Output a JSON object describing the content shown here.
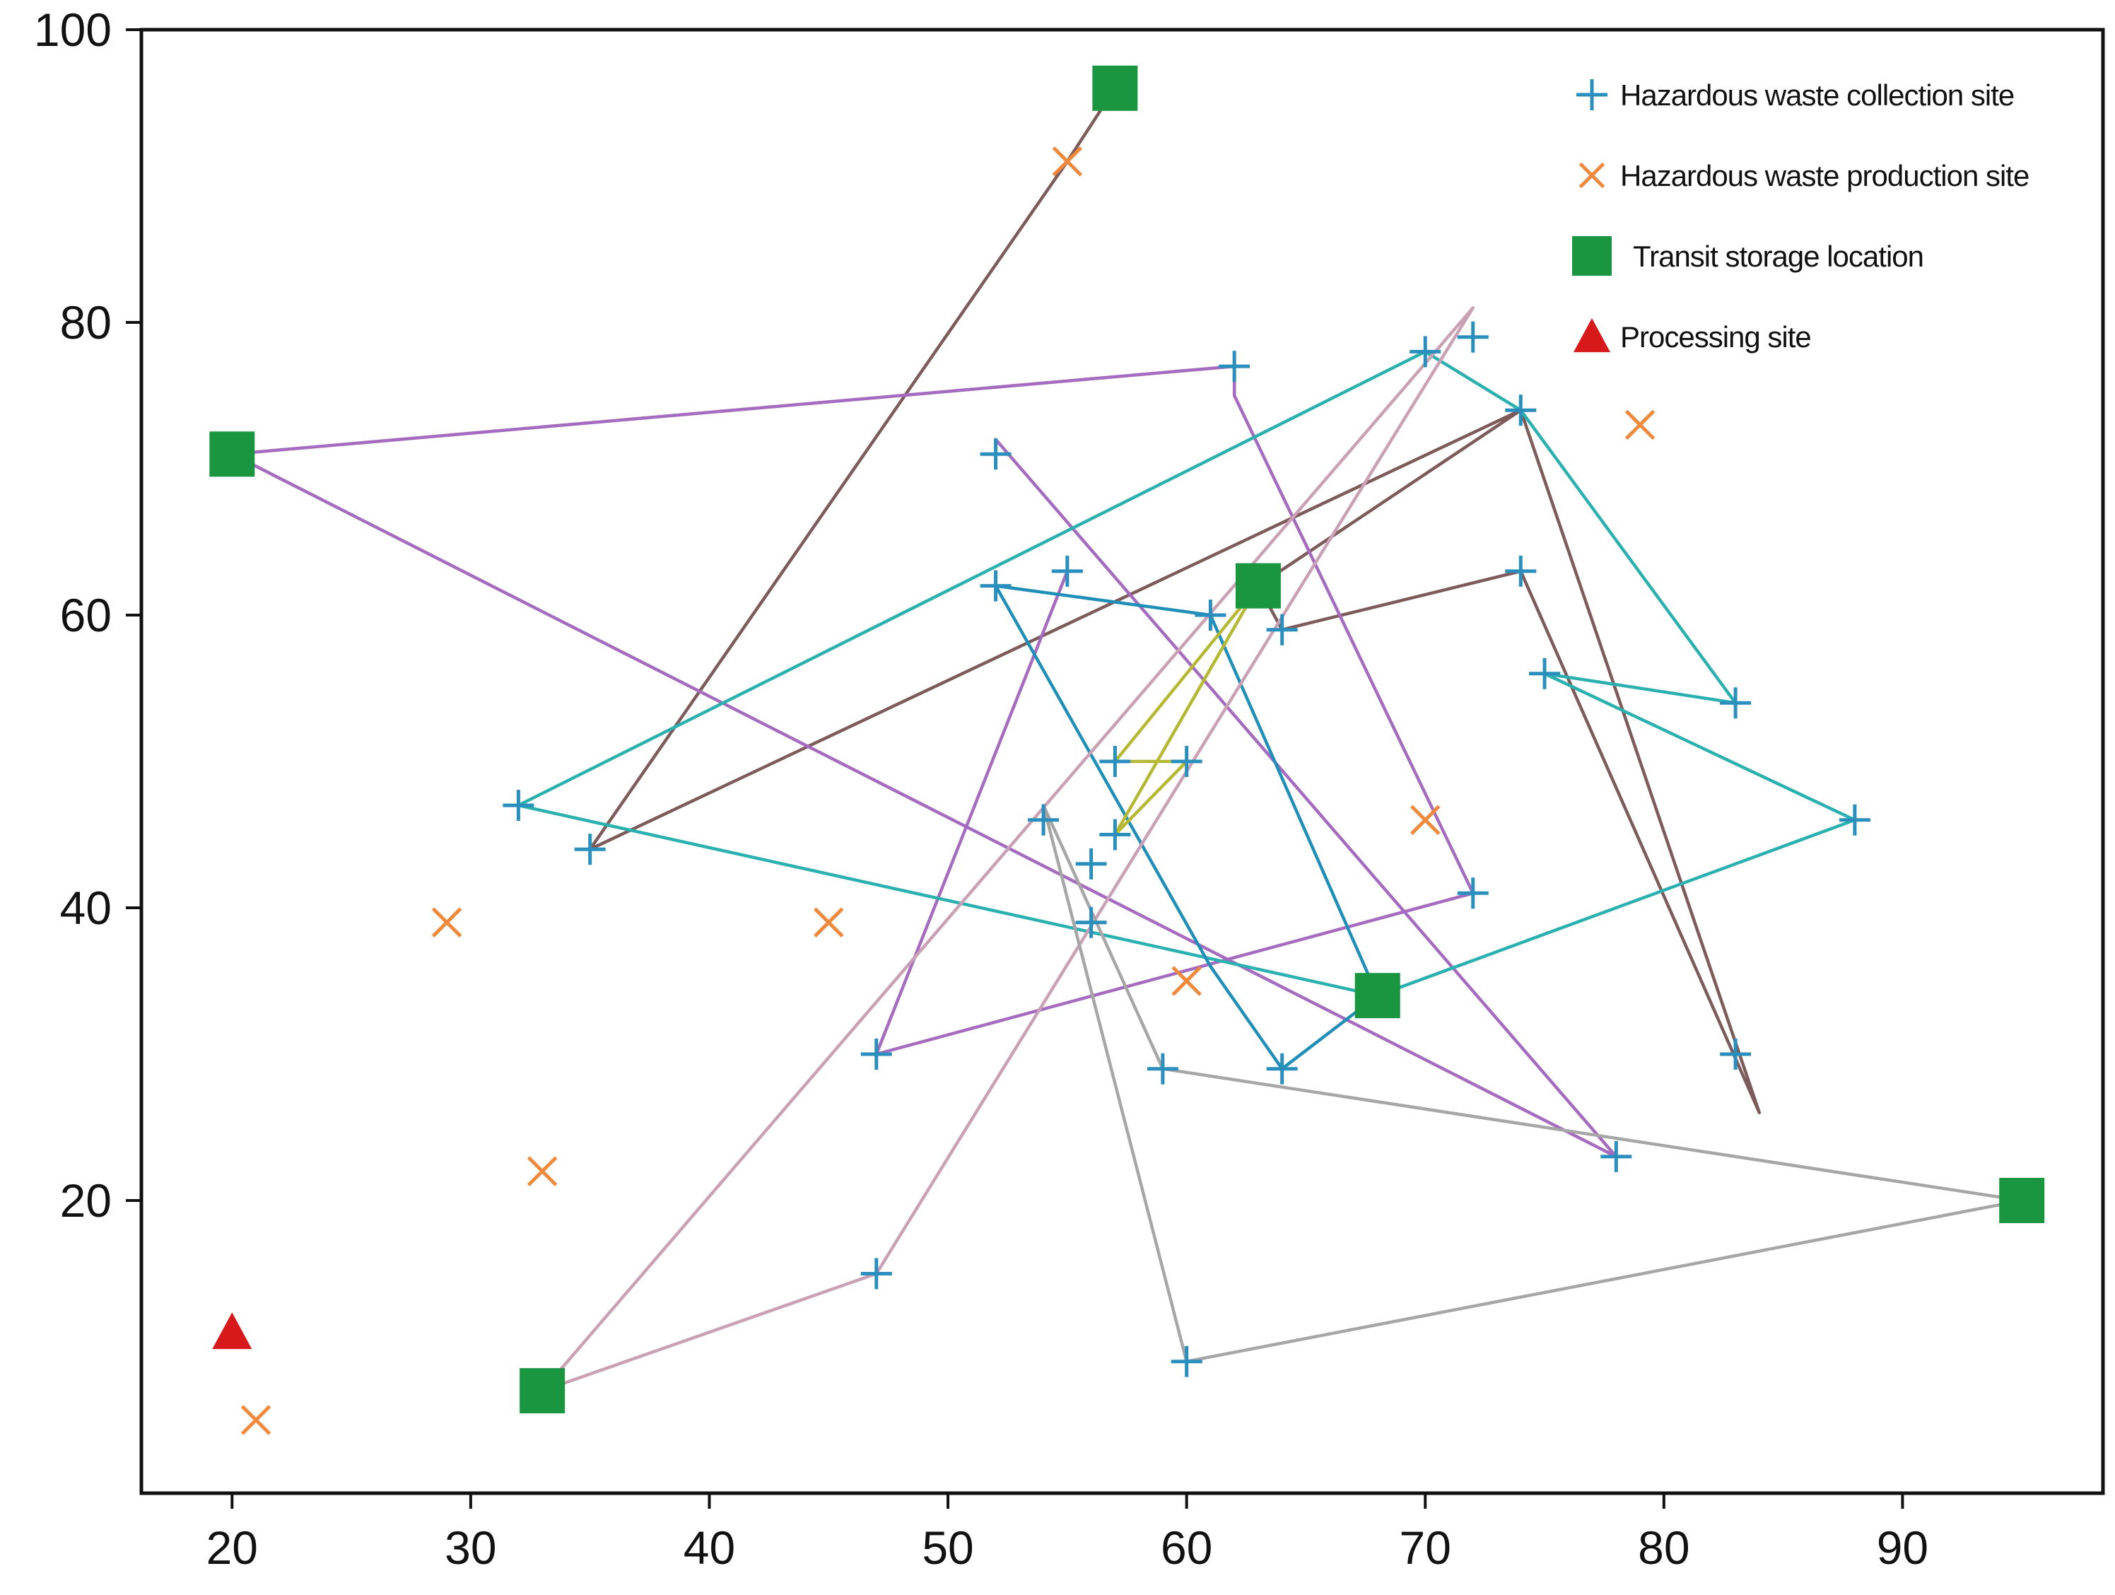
{
  "chart_data": {
    "type": "scatter",
    "title": "",
    "xlabel": "",
    "ylabel": "",
    "xlim": [
      16.2,
      98.4
    ],
    "ylim": [
      0,
      100
    ],
    "xticks": [
      20,
      30,
      40,
      50,
      60,
      70,
      80,
      90
    ],
    "yticks": [
      20,
      40,
      60,
      80,
      100
    ],
    "grid": false,
    "legend_position": "top-right",
    "legend": [
      {
        "key": "collection",
        "label": "Hazardous waste collection site"
      },
      {
        "key": "production",
        "label": "Hazardous waste production site"
      },
      {
        "key": "storage",
        "label": "Transit storage location"
      },
      {
        "key": "processing",
        "label": "Processing site"
      }
    ],
    "colors": {
      "collection": "#2a8fbd",
      "production": "#ef8a3c",
      "storage": "#1a9641",
      "processing": "#d7191c",
      "axis": "#111111"
    },
    "series": [
      {
        "key": "collection",
        "name": "Hazardous waste collection site",
        "marker": "plus",
        "points": [
          [
            62,
            77
          ],
          [
            52,
            71
          ],
          [
            74,
            74
          ],
          [
            70,
            78
          ],
          [
            72,
            79
          ],
          [
            52,
            62
          ],
          [
            55,
            63
          ],
          [
            61,
            60
          ],
          [
            64,
            59
          ],
          [
            74,
            63
          ],
          [
            75,
            56
          ],
          [
            83,
            54
          ],
          [
            88,
            46
          ],
          [
            57,
            50
          ],
          [
            60,
            50
          ],
          [
            54,
            46
          ],
          [
            56,
            43
          ],
          [
            57,
            45
          ],
          [
            56,
            39
          ],
          [
            32,
            47
          ],
          [
            35,
            44
          ],
          [
            72,
            41
          ],
          [
            47,
            30
          ],
          [
            59,
            29
          ],
          [
            64,
            29
          ],
          [
            83,
            30
          ],
          [
            78,
            23
          ],
          [
            47,
            15
          ],
          [
            60,
            9
          ]
        ]
      },
      {
        "key": "production",
        "name": "Hazardous waste production site",
        "marker": "x",
        "points": [
          [
            55,
            91
          ],
          [
            79,
            73
          ],
          [
            70,
            46
          ],
          [
            29,
            39
          ],
          [
            45,
            39
          ],
          [
            60,
            35
          ],
          [
            33,
            22
          ],
          [
            21,
            5
          ]
        ]
      },
      {
        "key": "storage",
        "name": "Transit storage location",
        "marker": "square",
        "points": [
          [
            57,
            96
          ],
          [
            20,
            71
          ],
          [
            63,
            62
          ],
          [
            68,
            34
          ],
          [
            95,
            20
          ],
          [
            33,
            7
          ]
        ]
      },
      {
        "key": "processing",
        "name": "Processing site",
        "marker": "triangle",
        "points": [
          [
            20,
            11
          ]
        ]
      }
    ],
    "routes": [
      {
        "color": "#7d5b5b",
        "points": [
          [
            57,
            96
          ],
          [
            55,
            91
          ],
          [
            35,
            44
          ],
          [
            74,
            74
          ],
          [
            63,
            62
          ],
          [
            64,
            59
          ],
          [
            74,
            63
          ],
          [
            84,
            26
          ],
          [
            74,
            74
          ]
        ]
      },
      {
        "color": "#a46bbf",
        "points": [
          [
            20,
            71
          ],
          [
            62,
            77
          ],
          [
            62,
            75
          ],
          [
            72,
            41
          ],
          [
            47,
            30
          ],
          [
            55,
            63
          ]
        ]
      },
      {
        "color": "#a46bbf",
        "points": [
          [
            20,
            71
          ],
          [
            78,
            23
          ],
          [
            52,
            72
          ]
        ]
      },
      {
        "color": "#2bb0b0",
        "points": [
          [
            32,
            47
          ],
          [
            70,
            78
          ],
          [
            74,
            74
          ],
          [
            83,
            54
          ],
          [
            75,
            56
          ],
          [
            88,
            46
          ],
          [
            68,
            34
          ],
          [
            32,
            47
          ]
        ]
      },
      {
        "color": "#1f8fb8",
        "points": [
          [
            52,
            62
          ],
          [
            61,
            60
          ],
          [
            68,
            34
          ],
          [
            64,
            29
          ],
          [
            61,
            36
          ],
          [
            52,
            62
          ]
        ]
      },
      {
        "color": "#c9a0b4",
        "points": [
          [
            33,
            7
          ],
          [
            72,
            81
          ],
          [
            47,
            15
          ],
          [
            33,
            7
          ]
        ]
      },
      {
        "color": "#a6a6a6",
        "points": [
          [
            54,
            47
          ],
          [
            59,
            29
          ],
          [
            95,
            20
          ],
          [
            60,
            9
          ],
          [
            54,
            47
          ]
        ]
      },
      {
        "color": "#b5b832",
        "points": [
          [
            63,
            62
          ],
          [
            57,
            50
          ],
          [
            60,
            50
          ],
          [
            57,
            45
          ],
          [
            63,
            62
          ]
        ]
      }
    ]
  }
}
